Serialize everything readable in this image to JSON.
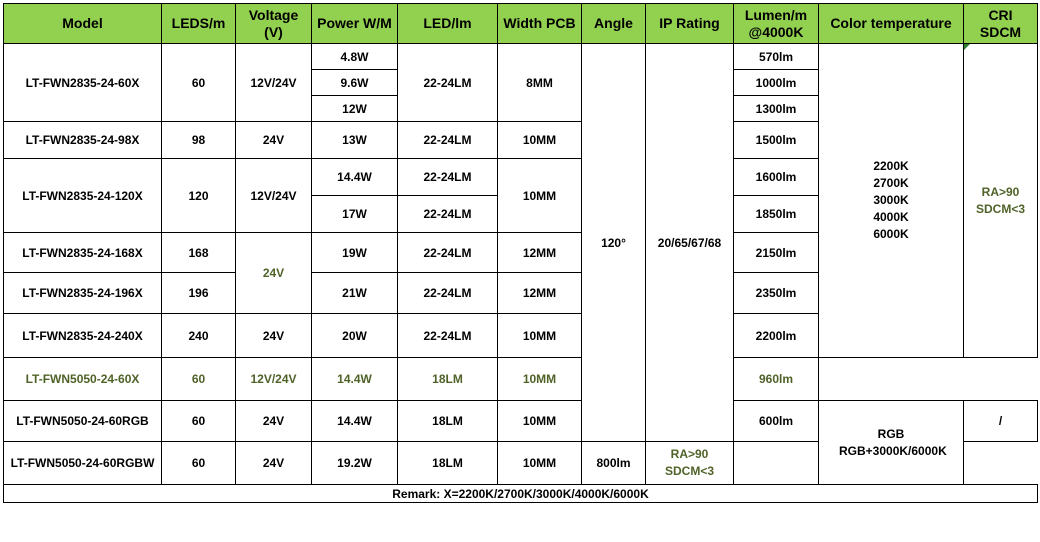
{
  "headers": {
    "model": "Model",
    "leds": "LEDS/m",
    "voltage": "Voltage (V)",
    "power": "Power W/M",
    "led_lm": "LED/lm",
    "width": "Width PCB",
    "angle": "Angle",
    "ip": "IP  Rating",
    "lumen": "Lumen/m @4000K",
    "color_temp": "Color  temperature",
    "cri": "CRI SDCM"
  },
  "shared": {
    "angle": "120°",
    "ip": "20/65/67/68",
    "cct_white": "2200K 2700K 3000K 4000K 6000K",
    "cri_white": "RA>90 SDCM<3",
    "cct_rgb": "RGB RGB+3000K/6000K",
    "cri_rgb": "/",
    "cri_rgbw": "RA>90 SDCM<3"
  },
  "rows": {
    "r60": {
      "model": "LT-FWN2835-24-60X",
      "leds": "60",
      "voltage": "12V/24V",
      "power": [
        "4.8W",
        "9.6W",
        "12W"
      ],
      "led_lm": "22-24LM",
      "width": "8MM",
      "lumen": [
        "570lm",
        "1000lm",
        "1300lm"
      ]
    },
    "r98": {
      "model": "LT-FWN2835-24-98X",
      "leds": "98",
      "voltage": "24V",
      "power": "13W",
      "led_lm": "22-24LM",
      "width": "10MM",
      "lumen": "1500lm"
    },
    "r120": {
      "model": "LT-FWN2835-24-120X",
      "leds": "120",
      "voltage": "12V/24V",
      "power": [
        "14.4W",
        "17W"
      ],
      "led_lm": [
        "22-24LM",
        "22-24LM"
      ],
      "width": "10MM",
      "lumen": [
        "1600lm",
        "1850lm"
      ]
    },
    "r168": {
      "model": "LT-FWN2835-24-168X",
      "leds": "168",
      "voltage": "24V",
      "power": "19W",
      "led_lm": "22-24LM",
      "width": "12MM",
      "lumen": "2150lm"
    },
    "r196": {
      "model": "LT-FWN2835-24-196X",
      "leds": "196",
      "power": "21W",
      "led_lm": "22-24LM",
      "width": "12MM",
      "lumen": "2350lm"
    },
    "r240": {
      "model": "LT-FWN2835-24-240X",
      "leds": "240",
      "voltage": "24V",
      "power": "20W",
      "led_lm": "22-24LM",
      "width": "10MM",
      "lumen": "2200lm"
    },
    "r5050": {
      "model": "LT-FWN5050-24-60X",
      "leds": "60",
      "voltage": "12V/24V",
      "power": "14.4W",
      "led_lm": "18LM",
      "width": "10MM",
      "lumen": "960lm"
    },
    "rgb": {
      "model": "LT-FWN5050-24-60RGB",
      "leds": "60",
      "voltage": "24V",
      "power": "14.4W",
      "led_lm": "18LM",
      "width": "10MM",
      "lumen": "600lm"
    },
    "rgbw": {
      "model": "LT-FWN5050-24-60RGBW",
      "leds": "60",
      "voltage": "24V",
      "power": "19.2W",
      "led_lm": "18LM",
      "width": "10MM",
      "lumen": "800lm"
    }
  },
  "remark": "Remark: X=2200K/2700K/3000K/4000K/6000K",
  "colors": {
    "header_bg": "#92d050",
    "green_text": "#4f6228",
    "marker": "#2e7d32"
  }
}
